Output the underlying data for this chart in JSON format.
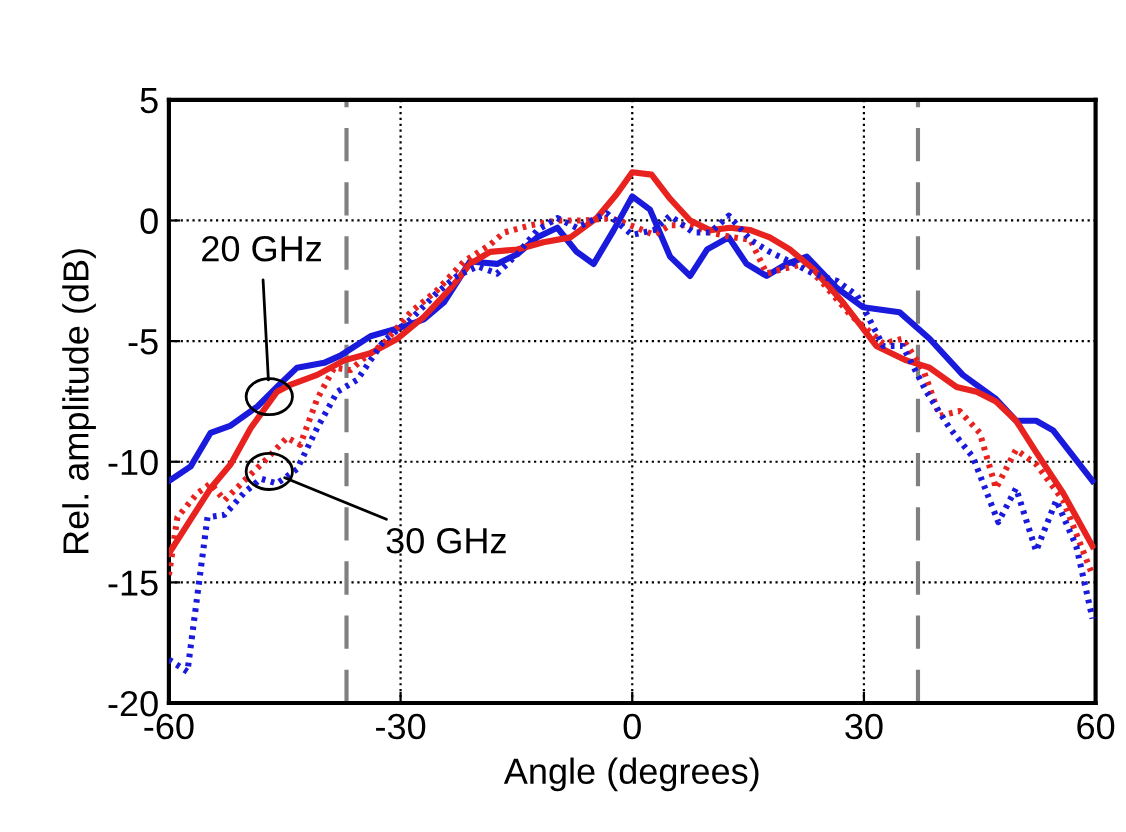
{
  "chart_data": {
    "type": "line",
    "xlabel": "Angle (degrees)",
    "ylabel": "Rel. amplitude (dB)",
    "xlim": [
      -60,
      60
    ],
    "xticks": [
      -60,
      -30,
      0,
      30,
      60
    ],
    "ylim": [
      -20,
      5
    ],
    "yticks": [
      -20,
      -15,
      -10,
      -5,
      0,
      5
    ],
    "grid": true,
    "marker": "none",
    "ref_lines": [
      {
        "axis": "x",
        "value": -37,
        "color": "#808080",
        "line_style": "dashed"
      },
      {
        "axis": "x",
        "value": 37,
        "color": "#808080",
        "line_style": "dashed"
      }
    ],
    "annotations": [
      {
        "text": "20 GHz",
        "x": -47,
        "y": -7.3
      },
      {
        "text": "30 GHz",
        "x": -47,
        "y": -10.4
      }
    ],
    "series": [
      {
        "color": "#1a1adc",
        "line_style": "solid",
        "x": [
          -60,
          -57.2,
          -54.6,
          -52,
          -48.5,
          -46,
          -43.4,
          -39.9,
          -37.8,
          -33.9,
          -29.6,
          -27,
          -24.4,
          -21,
          -17.5,
          -14.9,
          -12.3,
          -9.7,
          -7.2,
          -5,
          -2.4,
          0,
          2.3,
          4.9,
          7.5,
          9.7,
          12.5,
          14.8,
          17.4,
          20,
          22.6,
          26.5,
          29.9,
          34.6,
          38.5,
          42.8,
          47.1,
          49.7,
          52.3,
          54.5,
          59.6
        ],
        "values": [
          -10.8,
          -10.2,
          -8.8,
          -8.5,
          -7.7,
          -6.9,
          -6.1,
          -5.9,
          -5.6,
          -4.8,
          -4.4,
          -4.1,
          -3.4,
          -1.7,
          -1.8,
          -1.4,
          -0.7,
          -0.3,
          -1.3,
          -1.8,
          -0.4,
          1.0,
          0.45,
          -1.5,
          -2.3,
          -1.2,
          -0.7,
          -1.8,
          -2.3,
          -1.8,
          -1.5,
          -2.8,
          -3.6,
          -3.8,
          -4.9,
          -6.4,
          -7.4,
          -8.3,
          -8.3,
          -8.7,
          -10.8
        ]
      },
      {
        "color": "#e8231f",
        "line_style": "solid",
        "x": [
          -60,
          -58,
          -54.6,
          -52,
          -49.4,
          -46,
          -44.2,
          -40.8,
          -37.3,
          -33.9,
          -30.4,
          -27,
          -23.5,
          -21,
          -18.4,
          -14.9,
          -11.5,
          -8,
          -4.6,
          -2,
          0,
          2.5,
          4.9,
          7.5,
          10.1,
          12.7,
          15.3,
          17.8,
          20.4,
          23.4,
          27.3,
          31.6,
          35.5,
          38.5,
          42,
          44.6,
          47.1,
          49.7,
          52.3,
          55.8,
          59.6
        ],
        "values": [
          -13.8,
          -12.8,
          -11.1,
          -10.1,
          -8.6,
          -7.1,
          -6.8,
          -6.4,
          -5.8,
          -5.5,
          -4.9,
          -4.0,
          -2.8,
          -1.8,
          -1.3,
          -1.2,
          -0.9,
          -0.7,
          0.1,
          1.1,
          2.0,
          1.9,
          0.9,
          0,
          -0.4,
          -0.3,
          -0.4,
          -0.7,
          -1.2,
          -2.0,
          -3.4,
          -5.2,
          -5.8,
          -6.1,
          -6.9,
          -7.1,
          -7.5,
          -8.3,
          -9.6,
          -11.3,
          -13.5
        ]
      },
      {
        "color": "#e8231f",
        "line_style": "dotted",
        "x": [
          -60,
          -58.9,
          -56.3,
          -54.6,
          -52.8,
          -50.3,
          -47.7,
          -44.7,
          -43,
          -40.8,
          -38.6,
          -36.5,
          -34.7,
          -32.2,
          -28.7,
          -25.3,
          -21.8,
          -18.4,
          -16.6,
          -13.2,
          -9.7,
          -6.3,
          -2.8,
          0.6,
          2.8,
          4.9,
          7.5,
          10.1,
          13.1,
          15.3,
          17.4,
          19.6,
          22.2,
          24.7,
          28.2,
          32.5,
          35,
          37.7,
          39.8,
          42.4,
          45,
          47.1,
          49.7,
          52.3,
          55.8,
          59.6
        ],
        "values": [
          -14.7,
          -12.3,
          -11.3,
          -10.9,
          -11.6,
          -10.8,
          -10.0,
          -9.0,
          -9.3,
          -7.4,
          -6.1,
          -6.2,
          -5.7,
          -5.1,
          -3.8,
          -2.9,
          -1.7,
          -1.0,
          -0.5,
          -0.2,
          0,
          0,
          0.1,
          -0.3,
          -0.6,
          -0.2,
          -0.2,
          -0.5,
          -0.7,
          -0.8,
          -2.2,
          -2.0,
          -1.8,
          -2.6,
          -3.9,
          -5.1,
          -4.9,
          -6.2,
          -8.1,
          -7.9,
          -8.8,
          -11.1,
          -9.5,
          -10.1,
          -11.6,
          -14.7
        ]
      },
      {
        "color": "#1a1adc",
        "line_style": "dotted",
        "x": [
          -60,
          -57.6,
          -55,
          -52.8,
          -50.3,
          -48.1,
          -46,
          -43.4,
          -40.8,
          -38.2,
          -35.6,
          -32.2,
          -28.7,
          -25.3,
          -22.7,
          -20,
          -17.5,
          -14.9,
          -12.3,
          -9.7,
          -7.2,
          -3.3,
          0,
          2.8,
          4.9,
          7.9,
          10.1,
          12.5,
          15.3,
          17.8,
          20.4,
          23.4,
          26.5,
          29.1,
          32.5,
          35,
          38.1,
          41.1,
          44.1,
          47.4,
          49.7,
          52.3,
          54.9,
          57.5,
          59.6
        ],
        "values": [
          -18.2,
          -18.7,
          -12.3,
          -12.2,
          -11.3,
          -10.7,
          -10.9,
          -10.3,
          -8.6,
          -7.1,
          -6.6,
          -5.0,
          -4.1,
          -3.0,
          -2.3,
          -1.9,
          -2.2,
          -1.4,
          -0.4,
          0.1,
          -0.3,
          0.3,
          -0.6,
          -0.4,
          0.2,
          -0.5,
          -0.5,
          0.2,
          -0.8,
          -1.3,
          -1.7,
          -2.2,
          -2.5,
          -3.1,
          -5.2,
          -5.2,
          -7.1,
          -8.6,
          -9.8,
          -12.5,
          -11.1,
          -13.7,
          -11.6,
          -13.5,
          -16.5
        ]
      }
    ]
  }
}
